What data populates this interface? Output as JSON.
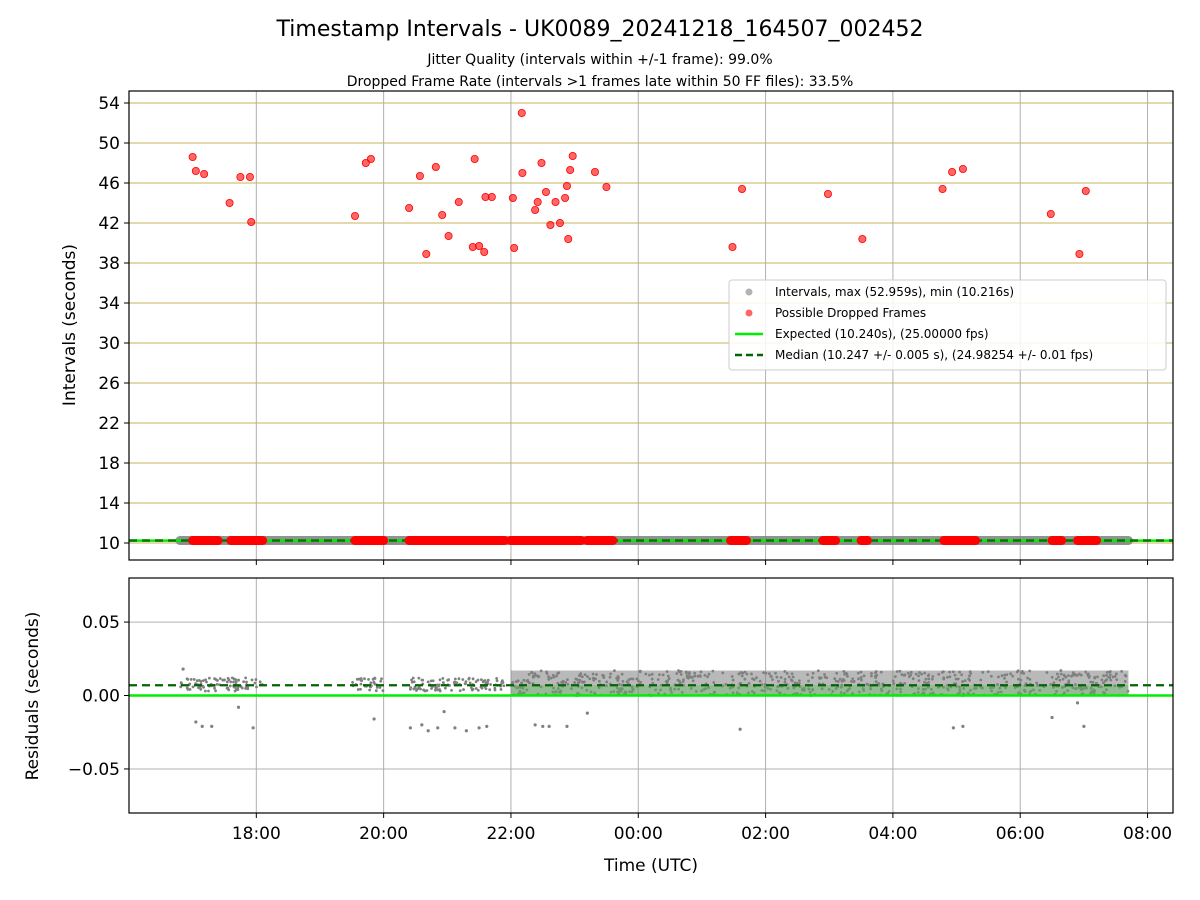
{
  "title": "Timestamp Intervals - UK0089_20241218_164507_002452",
  "subtitle1": "Jitter Quality (intervals within +/-1 frame): 99.0%",
  "subtitle2": "Dropped Frame Rate (intervals >1 frames late within 50 FF files): 33.5%",
  "colors": {
    "intervals": "#808080",
    "dropped": "#ff0000",
    "expected": "#00ee00",
    "median": "#006400",
    "hgrid_top": "#d4c27a",
    "grid": "#b0b0b0"
  },
  "chart_data": [
    {
      "type": "scatter",
      "panel": "intervals",
      "ylabel": "Intervals (seconds)",
      "ylim": [
        8.3,
        55.2
      ],
      "yticks": [
        "10",
        "14",
        "18",
        "22",
        "26",
        "30",
        "34",
        "38",
        "42",
        "46",
        "50",
        "54"
      ],
      "grid": "horizontal gold lines at y ticks; vertical grey lines at x ticks",
      "legend_position": "center-right",
      "legend": [
        {
          "key": "intervals",
          "label": "Intervals, max (52.959s), min (10.216s)"
        },
        {
          "key": "dropped",
          "label": "Possible Dropped Frames"
        },
        {
          "key": "expected",
          "label": "Expected (10.240s), (25.00000 fps)"
        },
        {
          "key": "median",
          "label": "Median (10.247 +/- 0.005 s), (24.98254 +/- 0.01 fps)"
        }
      ],
      "series": [
        {
          "name": "Intervals, max (52.959s), min (10.216s)",
          "note": "continuous band of points near 10.24 s spanning the whole time range",
          "x_range_hours": [
            16.8,
            31.7
          ],
          "y_approx": 10.25
        },
        {
          "name": "Possible Dropped Frames",
          "points": [
            [
              17.0,
              48.6
            ],
            [
              17.05,
              47.2
            ],
            [
              17.18,
              46.9
            ],
            [
              17.58,
              44.0
            ],
            [
              17.75,
              46.6
            ],
            [
              17.9,
              46.6
            ],
            [
              17.92,
              42.1
            ],
            [
              19.55,
              42.7
            ],
            [
              19.72,
              48.0
            ],
            [
              19.8,
              48.4
            ],
            [
              20.4,
              43.5
            ],
            [
              20.57,
              46.7
            ],
            [
              20.67,
              38.9
            ],
            [
              20.82,
              47.6
            ],
            [
              20.92,
              42.8
            ],
            [
              21.02,
              40.7
            ],
            [
              21.18,
              44.1
            ],
            [
              21.4,
              39.6
            ],
            [
              21.43,
              48.4
            ],
            [
              21.5,
              39.7
            ],
            [
              21.58,
              39.1
            ],
            [
              21.6,
              44.6
            ],
            [
              21.7,
              44.6
            ],
            [
              22.03,
              44.5
            ],
            [
              22.05,
              39.5
            ],
            [
              22.17,
              53.0
            ],
            [
              22.18,
              47.0
            ],
            [
              22.38,
              43.3
            ],
            [
              22.42,
              44.1
            ],
            [
              22.48,
              48.0
            ],
            [
              22.55,
              45.1
            ],
            [
              22.62,
              41.8
            ],
            [
              22.7,
              44.1
            ],
            [
              22.77,
              42.0
            ],
            [
              22.85,
              44.5
            ],
            [
              22.88,
              45.7
            ],
            [
              22.9,
              40.4
            ],
            [
              22.93,
              47.3
            ],
            [
              22.97,
              48.7
            ],
            [
              23.32,
              47.1
            ],
            [
              23.5,
              45.6
            ],
            [
              25.48,
              39.6
            ],
            [
              25.63,
              45.4
            ],
            [
              26.98,
              44.9
            ],
            [
              27.52,
              40.4
            ],
            [
              28.78,
              45.4
            ],
            [
              28.93,
              47.1
            ],
            [
              29.1,
              47.4
            ],
            [
              30.48,
              42.9
            ],
            [
              30.93,
              38.9
            ],
            [
              31.03,
              45.2
            ]
          ],
          "near_10s_clusters_hours": [
            [
              17.0,
              17.4
            ],
            [
              17.6,
              18.1
            ],
            [
              19.55,
              20.0
            ],
            [
              20.4,
              21.9
            ],
            [
              22.0,
              23.1
            ],
            [
              23.2,
              23.6
            ],
            [
              25.45,
              25.7
            ],
            [
              26.9,
              27.1
            ],
            [
              27.5,
              27.6
            ],
            [
              28.8,
              29.3
            ],
            [
              30.5,
              30.65
            ],
            [
              30.9,
              31.2
            ]
          ],
          "near_10s_y": 10.25
        },
        {
          "name": "Expected (10.240s), (25.00000 fps)",
          "y": 10.24
        },
        {
          "name": "Median (10.247 +/- 0.005 s), (24.98254 +/- 0.01 fps)",
          "y": 10.247
        }
      ]
    },
    {
      "type": "scatter",
      "panel": "residuals",
      "xlabel": "Time (UTC)",
      "ylabel": "Residuals (seconds)",
      "ylim": [
        -0.08,
        0.08
      ],
      "yticks": [
        "0.05",
        "0.00",
        "−0.05"
      ],
      "xlim_hours": [
        16.0,
        32.4
      ],
      "xticks": [
        {
          "h": 18,
          "label": "18:00"
        },
        {
          "h": 20,
          "label": "20:00"
        },
        {
          "h": 22,
          "label": "22:00"
        },
        {
          "h": 24,
          "label": "00:00"
        },
        {
          "h": 26,
          "label": "02:00"
        },
        {
          "h": 28,
          "label": "04:00"
        },
        {
          "h": 30,
          "label": "06:00"
        },
        {
          "h": 32,
          "label": "08:00"
        }
      ],
      "grid": "on",
      "series": [
        {
          "name": "Residuals",
          "note": "sparse points before 22:00 in sub-ranges, dense band 0.000 to 0.017 s from 22:00 to 07:45",
          "sparse_ranges_hours": [
            [
              16.8,
              18.1
            ],
            [
              19.5,
              20.0
            ],
            [
              20.4,
              21.9
            ]
          ],
          "dense_range_hours": [
            22.0,
            31.7
          ],
          "band_s": [
            0.0,
            0.017
          ],
          "outliers": [
            [
              16.85,
              0.018
            ],
            [
              17.05,
              -0.018
            ],
            [
              17.15,
              -0.021
            ],
            [
              17.3,
              -0.021
            ],
            [
              17.72,
              -0.008
            ],
            [
              17.95,
              -0.022
            ],
            [
              19.85,
              -0.016
            ],
            [
              20.42,
              -0.022
            ],
            [
              20.6,
              -0.02
            ],
            [
              20.7,
              -0.024
            ],
            [
              20.85,
              -0.022
            ],
            [
              20.95,
              -0.011
            ],
            [
              21.12,
              -0.022
            ],
            [
              21.3,
              -0.024
            ],
            [
              21.5,
              -0.022
            ],
            [
              21.62,
              -0.021
            ],
            [
              22.38,
              -0.02
            ],
            [
              22.5,
              -0.021
            ],
            [
              22.6,
              -0.021
            ],
            [
              22.88,
              -0.021
            ],
            [
              23.2,
              -0.012
            ],
            [
              25.6,
              -0.023
            ],
            [
              28.95,
              -0.022
            ],
            [
              29.1,
              -0.021
            ],
            [
              30.5,
              -0.015
            ],
            [
              30.9,
              -0.005
            ],
            [
              31.0,
              -0.021
            ]
          ]
        },
        {
          "name": "Expected",
          "y": 0.0
        },
        {
          "name": "Median",
          "y": 0.007
        }
      ]
    }
  ]
}
